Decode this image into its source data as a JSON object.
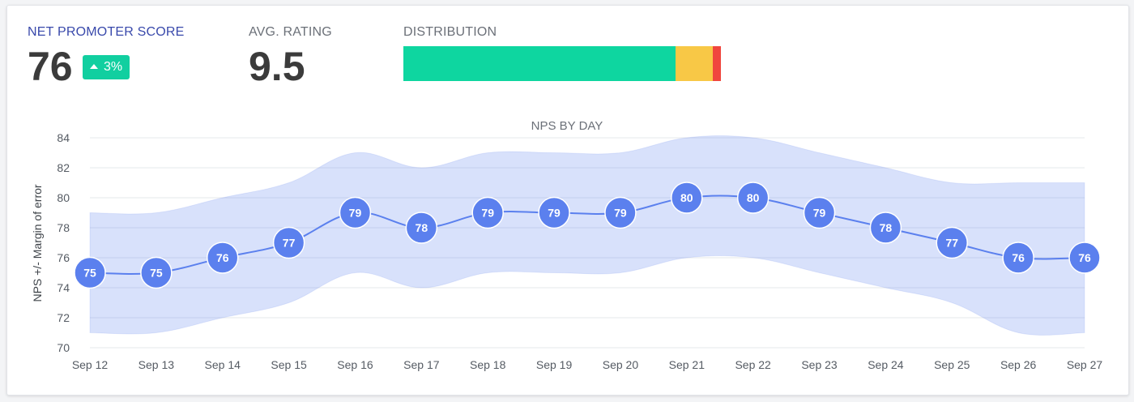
{
  "kpis": {
    "nps": {
      "label": "NET PROMOTER SCORE",
      "value": "76",
      "change": "3%",
      "label_color": "#3949ab",
      "badge_color": "#11cfa0"
    },
    "avg_rating": {
      "label": "AVG. RATING",
      "value": "9.5",
      "label_color": "#6b7078"
    },
    "distribution": {
      "label": "DISTRIBUTION",
      "label_color": "#6b7078",
      "segments": [
        {
          "name": "promoters",
          "fraction": 0.857,
          "color": "#0ed6a0"
        },
        {
          "name": "passives",
          "fraction": 0.117,
          "color": "#f8c846"
        },
        {
          "name": "detractors",
          "fraction": 0.026,
          "color": "#f0463e"
        }
      ]
    }
  },
  "chart_data": {
    "type": "line",
    "title": "NPS BY DAY",
    "ylabel": "NPS +/- Margin of error",
    "xlabel": "",
    "categories": [
      "Sep 12",
      "Sep 13",
      "Sep 14",
      "Sep 15",
      "Sep 16",
      "Sep 17",
      "Sep 18",
      "Sep 19",
      "Sep 20",
      "Sep 21",
      "Sep 22",
      "Sep 23",
      "Sep 24",
      "Sep 25",
      "Sep 26",
      "Sep 27"
    ],
    "series": [
      {
        "values": [
          75,
          75,
          76,
          77,
          79,
          78,
          79,
          79,
          79,
          80,
          80,
          79,
          78,
          77,
          76,
          76
        ],
        "color": "#5b80ee",
        "data_labels": true
      }
    ],
    "band": {
      "upper": [
        79,
        79,
        80,
        81,
        83,
        82,
        83,
        83,
        83,
        84,
        84,
        83,
        82,
        81,
        81,
        81
      ],
      "lower": [
        71,
        71,
        72,
        73,
        75,
        74,
        75,
        75,
        75,
        76,
        76,
        75,
        74,
        73,
        71,
        71
      ],
      "color": "#5b80ee",
      "opacity": 0.24
    },
    "ylim": [
      70,
      84
    ],
    "yticks": [
      70,
      72,
      74,
      76,
      78,
      80,
      82,
      84
    ],
    "grid": true,
    "legend": "none"
  }
}
